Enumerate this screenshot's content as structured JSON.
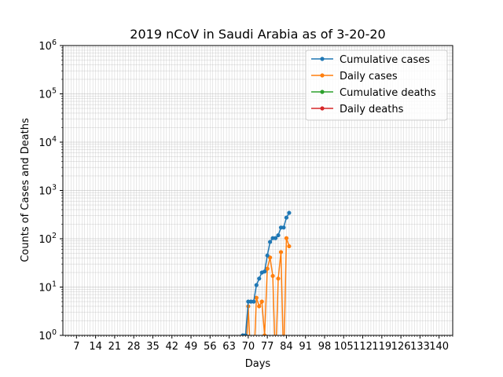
{
  "chart_data": {
    "type": "line",
    "title": "2019 nCoV in Saudi Arabia as of 3-20-20",
    "xlabel": "Days",
    "ylabel": "Counts of Cases and Deaths",
    "xlim": [
      2,
      145
    ],
    "ylim": [
      1,
      1000000
    ],
    "yscale": "log",
    "grid": true,
    "legend_position": "top-right",
    "x_ticks": [
      7,
      14,
      21,
      28,
      35,
      42,
      49,
      56,
      63,
      70,
      77,
      84,
      91,
      98,
      105,
      112,
      119,
      126,
      133,
      140
    ],
    "x_tick_labels": [
      "7",
      "14",
      "21",
      "28",
      "35",
      "42",
      "49",
      "56",
      "63",
      "70",
      "77",
      "84",
      "91",
      "98",
      "105",
      "112",
      "119",
      "126",
      "133",
      "140"
    ],
    "y_tick_labels": [
      {
        "value": 1,
        "base": "10",
        "exp": "0"
      },
      {
        "value": 10,
        "base": "10",
        "exp": "1"
      },
      {
        "value": 100,
        "base": "10",
        "exp": "2"
      },
      {
        "value": 1000,
        "base": "10",
        "exp": "3"
      },
      {
        "value": 10000,
        "base": "10",
        "exp": "4"
      },
      {
        "value": 100000,
        "base": "10",
        "exp": "5"
      },
      {
        "value": 1000000,
        "base": "10",
        "exp": "6"
      }
    ],
    "series": [
      {
        "name": "Cumulative cases",
        "color": "#1f77b4",
        "x": [
          67,
          68,
          69,
          70,
          71,
          72,
          73,
          74,
          75,
          76,
          77,
          78,
          79,
          80,
          81,
          82,
          83,
          84,
          85
        ],
        "y": [
          0,
          1,
          1,
          5,
          5,
          5,
          11,
          15,
          20,
          21,
          45,
          86,
          103,
          103,
          118,
          171,
          171,
          274,
          344
        ]
      },
      {
        "name": "Daily cases",
        "color": "#ff7f0e",
        "x": [
          67,
          68,
          69,
          70,
          71,
          72,
          73,
          74,
          75,
          76,
          77,
          78,
          79,
          80,
          81,
          82,
          83,
          84,
          85
        ],
        "y": [
          0,
          1,
          0,
          4,
          0,
          0,
          6,
          4,
          5,
          1,
          24,
          41,
          17,
          0,
          15,
          53,
          0,
          103,
          70
        ]
      },
      {
        "name": "Cumulative deaths",
        "color": "#2ca02c",
        "x": [
          67,
          68,
          69,
          70,
          71,
          72,
          73,
          74,
          75,
          76,
          77,
          78,
          79,
          80,
          81,
          82,
          83,
          84,
          85
        ],
        "y": [
          0,
          0,
          0,
          0,
          0,
          0,
          0,
          0,
          0,
          0,
          0,
          0,
          0,
          0,
          0,
          0,
          0,
          0,
          0
        ]
      },
      {
        "name": "Daily deaths",
        "color": "#d62728",
        "x": [
          67,
          68,
          69,
          70,
          71,
          72,
          73,
          74,
          75,
          76,
          77,
          78,
          79,
          80,
          81,
          82,
          83,
          84,
          85
        ],
        "y": [
          0,
          0,
          0,
          0,
          0,
          0,
          0,
          0,
          0,
          0,
          0,
          0,
          0,
          0,
          0,
          0,
          0,
          0,
          0
        ]
      }
    ]
  }
}
